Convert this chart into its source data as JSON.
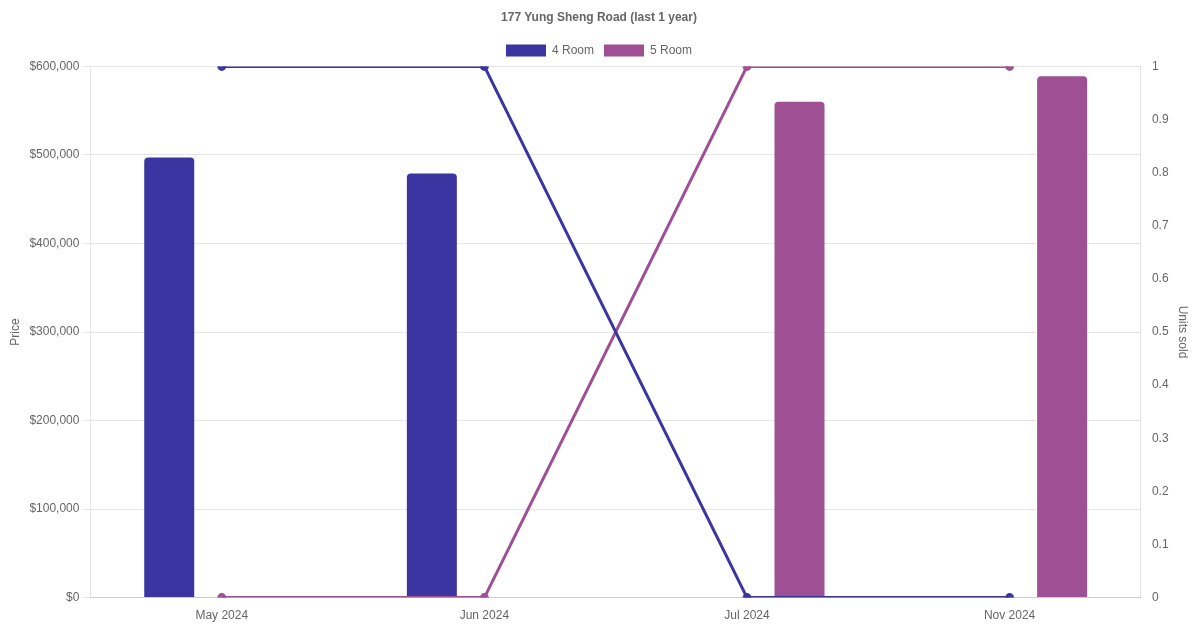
{
  "chart_data": {
    "type": "bar",
    "title": "177 Yung Sheng Road (last 1 year)",
    "categories": [
      "May 2024",
      "Jun 2024",
      "Jul 2024",
      "Nov 2024"
    ],
    "series": [
      {
        "name": "4 Room",
        "color": "#3a35a0",
        "values": [
          497000,
          479000,
          null,
          null
        ]
      },
      {
        "name": "5 Room",
        "color": "#9f5094",
        "values": [
          null,
          null,
          560000,
          589000
        ]
      },
      {
        "type": "line",
        "axis": "y2",
        "color": "#3a35a0",
        "values": [
          1,
          1,
          0,
          0
        ]
      },
      {
        "type": "line",
        "axis": "y2",
        "color": "#9f5094",
        "values": [
          0,
          0,
          1,
          1
        ]
      }
    ],
    "ylabel": "Price",
    "y2label": "Units sold",
    "ylim": [
      0,
      600000
    ],
    "yticks": [
      {
        "value": 0,
        "label": "$0"
      },
      {
        "value": 100000,
        "label": "$100,000"
      },
      {
        "value": 200000,
        "label": "$200,000"
      },
      {
        "value": 300000,
        "label": "$300,000"
      },
      {
        "value": 400000,
        "label": "$400,000"
      },
      {
        "value": 500000,
        "label": "$500,000"
      },
      {
        "value": 600000,
        "label": "$600,000"
      }
    ],
    "y2lim": [
      0,
      1
    ],
    "y2ticks": [
      0,
      0.1,
      0.2,
      0.3,
      0.4,
      0.5,
      0.6,
      0.7,
      0.8,
      0.9,
      1
    ],
    "grid": "y",
    "legend": "top",
    "marker": "circle"
  }
}
